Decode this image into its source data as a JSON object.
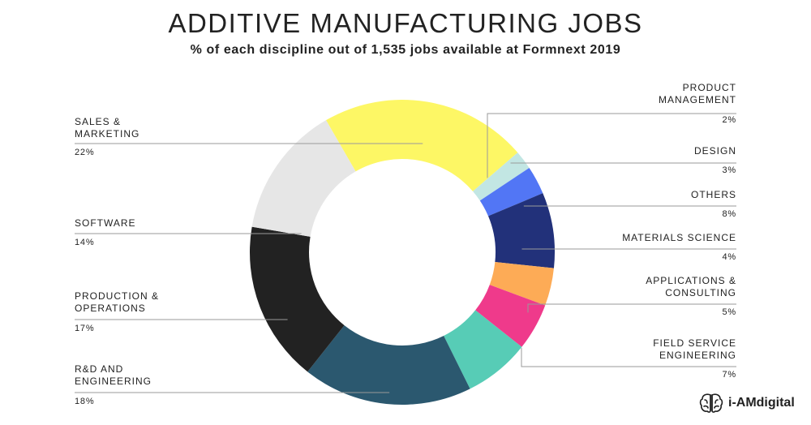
{
  "chart_data": {
    "type": "pie",
    "title": "ADDITIVE MANUFACTURING JOBS",
    "subtitle": "% of each discipline out of 1,535 jobs available at Formnext 2019",
    "slices": [
      {
        "label": "SALES &\nMARKETING",
        "value": 22,
        "pct_label": "22%",
        "color": "#fdf765"
      },
      {
        "label": "PRODUCT\nMANAGEMENT",
        "value": 2,
        "pct_label": "2%",
        "color": "#c2e6e3"
      },
      {
        "label": "DESIGN",
        "value": 3,
        "pct_label": "3%",
        "color": "#5276f5"
      },
      {
        "label": "OTHERS",
        "value": 8,
        "pct_label": "8%",
        "color": "#22317a"
      },
      {
        "label": "MATERIALS SCIENCE",
        "value": 4,
        "pct_label": "4%",
        "color": "#fdab56"
      },
      {
        "label": "APPLICATIONS &\nCONSULTING",
        "value": 5,
        "pct_label": "5%",
        "color": "#ef3a8b"
      },
      {
        "label": "FIELD SERVICE\nENGINEERING",
        "value": 7,
        "pct_label": "7%",
        "color": "#57ccb6"
      },
      {
        "label": "R&D AND\nENGINEERING",
        "value": 18,
        "pct_label": "18%",
        "color": "#2b586f"
      },
      {
        "label": "PRODUCTION &\nOPERATIONS",
        "value": 17,
        "pct_label": "17%",
        "color": "#222222"
      },
      {
        "label": "SOFTWARE",
        "value": 14,
        "pct_label": "14%",
        "color": "#e6e6e6"
      }
    ]
  },
  "brand": {
    "name": "i-AMdigital",
    "logo_icon": "brain-icon"
  }
}
